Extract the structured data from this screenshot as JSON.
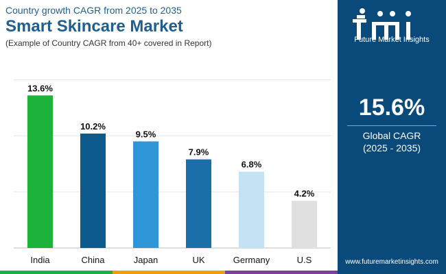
{
  "header": {
    "subtitle": "Country growth CAGR from 2025 to 2035",
    "title": "Smart Skincare Market",
    "note": "(Example of Country CAGR from 40+ covered in Report)"
  },
  "chart_data": {
    "type": "bar",
    "categories": [
      "India",
      "China",
      "Japan",
      "UK",
      "Germany",
      "U.S"
    ],
    "values": [
      13.6,
      10.2,
      9.5,
      7.9,
      6.8,
      4.2
    ],
    "value_labels": [
      "13.6%",
      "10.2%",
      "9.5%",
      "7.9%",
      "6.8%",
      "4.2%"
    ],
    "colors": [
      "#1db33a",
      "#0d5a8c",
      "#2f96d8",
      "#1a6fa8",
      "#c5e2f4",
      "#e0e0e0"
    ],
    "ylim": [
      0,
      16
    ],
    "gridlines": [
      5,
      10,
      15
    ],
    "title": "Smart Skincare Market",
    "xlabel": "",
    "ylabel": ""
  },
  "sidebar": {
    "logo_text": "Future Market Insights",
    "global_value": "15.6%",
    "global_label": "Global CAGR",
    "global_period": "(2025 - 2035)",
    "url": "www.futuremarketinsights.com"
  },
  "footer": {
    "colors": [
      "#1db33a",
      "#f39c12",
      "#7b3fa0"
    ]
  }
}
